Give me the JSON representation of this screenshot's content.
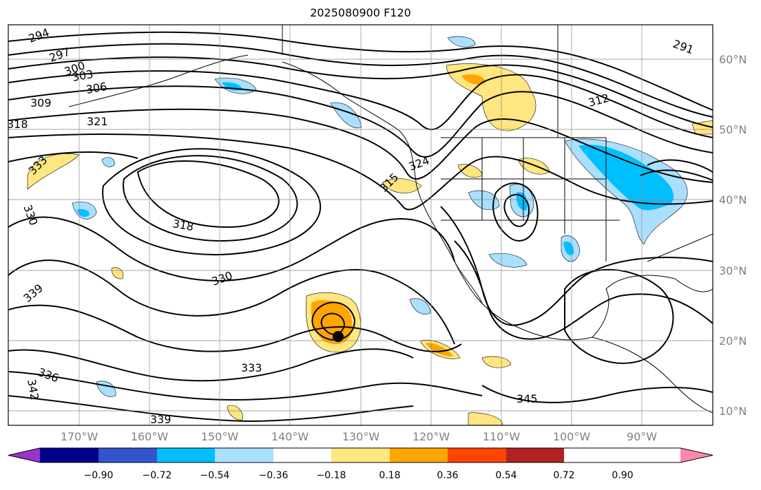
{
  "title": "2025080900 F120",
  "lat_labels": [
    "60°N",
    "50°N",
    "40°N",
    "30°N",
    "20°N",
    "10°N"
  ],
  "lon_labels": [
    "170°W",
    "160°W",
    "150°W",
    "140°W",
    "130°W",
    "120°W",
    "110°W",
    "100°W",
    "90°W"
  ],
  "colorbar": {
    "ticks": [
      "−0.90",
      "−0.72",
      "−0.54",
      "−0.36",
      "−0.18",
      "0.18",
      "0.36",
      "0.54",
      "0.72",
      "0.90"
    ],
    "colors": [
      "#9933cc",
      "#00008b",
      "#3355cc",
      "#00bfff",
      "#aadfff",
      "#ffffff",
      "#ffe680",
      "#ffa500",
      "#ff4500",
      "#b22222",
      "#ff88aa"
    ]
  },
  "contour_labels": [
    "294",
    "297",
    "300",
    "303",
    "306",
    "309",
    "318",
    "321",
    "333",
    "330",
    "339",
    "336",
    "342",
    "345",
    "324",
    "315",
    "291",
    "312",
    "318",
    "330",
    "333",
    "339"
  ]
}
